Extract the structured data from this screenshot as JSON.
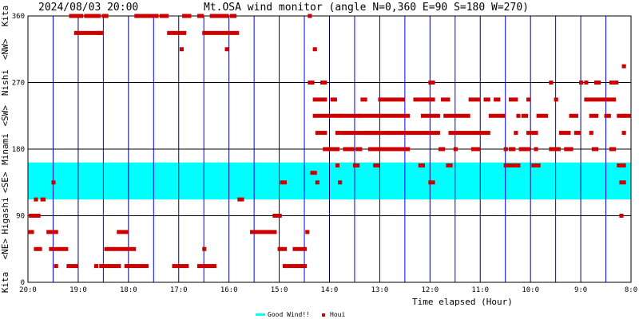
{
  "header": {
    "timestamp": "2024/08/03 20:00",
    "title": "Mt.OSA wind monitor (angle N=0,360 E=90 S=180 W=270)"
  },
  "yaxis": {
    "tick_labels": [
      "0",
      "90",
      "180",
      "270",
      "360"
    ],
    "direction_labels": [
      "Kita",
      "<NE>",
      "Higashi",
      "<SE>",
      "Minami",
      "<SW>",
      "Nishi",
      "<NW>",
      "Kita"
    ]
  },
  "xaxis": {
    "label": "Time elapsed (Hour)",
    "tick_labels": [
      "20:0",
      "19:0",
      "18:0",
      "17:0",
      "16:0",
      "15:0",
      "14:0",
      "13:0",
      "12:0",
      "11:0",
      "10:0",
      "9:0",
      "8:0"
    ]
  },
  "legend": {
    "good_wind": "Good Wind!!",
    "houi": "Houi"
  },
  "colors": {
    "good_wind": "#00ffff",
    "houi": "#cc0000",
    "grid_major": "#000080",
    "grid_minor": "#0000ff"
  },
  "chart_data": {
    "type": "scatter",
    "title": "Mt.OSA wind monitor (angle N=0,360 E=90 S=180 W=270)",
    "xlabel": "Time elapsed (Hour)",
    "ylabel": "",
    "xlim": [
      0,
      12
    ],
    "ylim": [
      0,
      360
    ],
    "x_direction": "hours elapsed from 20:00 backward to 08:00",
    "grid": true,
    "legend_position": "bottom-center",
    "good_wind_band": {
      "name": "Good Wind!!",
      "from": 112,
      "to": 162
    },
    "series": [
      {
        "name": "Houi",
        "runs": [
          [
            0.03,
            0.12,
            68
          ],
          [
            0.05,
            0.25,
            90
          ],
          [
            0.15,
            0.2,
            112
          ],
          [
            0.15,
            0.28,
            45
          ],
          [
            0.28,
            0.35,
            112
          ],
          [
            0.4,
            0.6,
            68
          ],
          [
            0.45,
            0.8,
            45
          ],
          [
            0.5,
            0.55,
            135
          ],
          [
            0.55,
            0.6,
            22
          ],
          [
            0.8,
            1.0,
            22
          ],
          [
            0.85,
            1.1,
            360
          ],
          [
            0.95,
            1.5,
            337
          ],
          [
            1.15,
            1.45,
            360
          ],
          [
            1.35,
            1.4,
            22
          ],
          [
            1.4,
            1.45,
            337
          ],
          [
            1.5,
            1.6,
            360
          ],
          [
            1.45,
            1.85,
            22
          ],
          [
            1.55,
            2.15,
            45
          ],
          [
            1.8,
            2.0,
            68
          ],
          [
            1.95,
            2.4,
            22
          ],
          [
            2.15,
            2.6,
            360
          ],
          [
            2.65,
            2.8,
            360
          ],
          [
            2.8,
            3.15,
            337
          ],
          [
            2.9,
            3.2,
            22
          ],
          [
            3.1,
            3.25,
            360
          ],
          [
            3.05,
            3.1,
            315
          ],
          [
            3.4,
            3.5,
            360
          ],
          [
            3.4,
            3.75,
            22
          ],
          [
            3.5,
            3.55,
            45
          ],
          [
            3.5,
            4.2,
            337
          ],
          [
            3.65,
            4.0,
            360
          ],
          [
            3.95,
            4.0,
            315
          ],
          [
            4.05,
            4.15,
            360
          ],
          [
            4.2,
            4.3,
            112
          ],
          [
            4.45,
            4.95,
            68
          ],
          [
            4.9,
            5.05,
            90
          ],
          [
            5.05,
            5.15,
            135
          ],
          [
            5.0,
            5.15,
            45
          ],
          [
            5.1,
            5.45,
            22
          ],
          [
            5.3,
            5.55,
            45
          ],
          [
            5.45,
            5.55,
            22
          ],
          [
            5.55,
            5.6,
            68
          ],
          [
            5.6,
            5.65,
            360
          ],
          [
            5.6,
            5.7,
            270
          ],
          [
            5.7,
            5.75,
            315
          ],
          [
            5.65,
            5.75,
            148
          ],
          [
            5.75,
            5.8,
            135
          ],
          [
            5.7,
            5.95,
            247
          ],
          [
            5.7,
            6.2,
            225
          ],
          [
            5.75,
            5.95,
            202
          ],
          [
            5.9,
            6.2,
            180
          ],
          [
            5.85,
            5.95,
            270
          ],
          [
            6.05,
            6.15,
            247
          ],
          [
            6.15,
            6.2,
            158
          ],
          [
            6.2,
            6.25,
            135
          ],
          [
            6.15,
            7.0,
            202
          ],
          [
            6.2,
            6.6,
            225
          ],
          [
            6.3,
            6.5,
            180
          ],
          [
            6.5,
            6.6,
            158
          ],
          [
            6.55,
            6.65,
            180
          ],
          [
            6.6,
            7.6,
            225
          ],
          [
            6.65,
            6.75,
            247
          ],
          [
            6.75,
            7.2,
            202
          ],
          [
            6.8,
            7.5,
            180
          ],
          [
            6.9,
            7.0,
            158
          ],
          [
            7.0,
            7.5,
            247
          ],
          [
            7.2,
            8.2,
            202
          ],
          [
            7.5,
            7.6,
            180
          ],
          [
            7.7,
            8.1,
            247
          ],
          [
            7.85,
            8.2,
            225
          ],
          [
            7.8,
            7.9,
            158
          ],
          [
            8.2,
            8.3,
            180
          ],
          [
            8.0,
            8.1,
            135
          ],
          [
            8.0,
            8.1,
            270
          ],
          [
            8.25,
            8.4,
            247
          ],
          [
            8.3,
            8.8,
            225
          ],
          [
            8.35,
            8.45,
            158
          ],
          [
            8.5,
            8.55,
            180
          ],
          [
            8.4,
            9.2,
            202
          ],
          [
            8.8,
            9.0,
            247
          ],
          [
            8.85,
            9.0,
            180
          ],
          [
            9.1,
            9.2,
            247
          ],
          [
            9.2,
            9.5,
            225
          ],
          [
            9.3,
            9.4,
            247
          ],
          [
            9.5,
            9.55,
            180
          ],
          [
            9.5,
            9.6,
            158
          ],
          [
            9.6,
            9.7,
            158
          ],
          [
            9.6,
            9.7,
            180
          ],
          [
            9.6,
            9.75,
            247
          ],
          [
            9.7,
            9.75,
            202
          ],
          [
            9.75,
            9.8,
            225
          ],
          [
            9.7,
            9.8,
            158
          ],
          [
            9.8,
            10.0,
            180
          ],
          [
            9.95,
            10.15,
            202
          ],
          [
            9.85,
            9.95,
            225
          ],
          [
            9.95,
            10.0,
            247
          ],
          [
            10.05,
            10.2,
            158
          ],
          [
            10.1,
            10.15,
            180
          ],
          [
            10.15,
            10.35,
            225
          ],
          [
            10.4,
            10.6,
            180
          ],
          [
            10.4,
            10.45,
            270
          ],
          [
            10.5,
            10.55,
            247
          ],
          [
            10.6,
            10.8,
            202
          ],
          [
            10.7,
            10.85,
            180
          ],
          [
            10.8,
            10.95,
            225
          ],
          [
            10.9,
            11.0,
            202
          ],
          [
            11.0,
            11.05,
            270
          ],
          [
            11.1,
            11.15,
            270
          ],
          [
            11.2,
            11.25,
            202
          ],
          [
            11.25,
            11.35,
            180
          ],
          [
            11.1,
            11.7,
            247
          ],
          [
            11.2,
            11.35,
            225
          ],
          [
            11.3,
            11.4,
            270
          ],
          [
            11.6,
            11.75,
            270
          ],
          [
            11.5,
            11.6,
            225
          ],
          [
            11.75,
            11.85,
            225
          ],
          [
            11.85,
            11.9,
            225
          ],
          [
            11.85,
            11.9,
            202
          ],
          [
            11.85,
            11.9,
            292
          ],
          [
            11.9,
            12.0,
            225
          ],
          [
            11.75,
            11.9,
            158
          ],
          [
            11.8,
            11.85,
            90
          ],
          [
            11.8,
            11.9,
            135
          ],
          [
            11.6,
            11.7,
            180
          ]
        ]
      }
    ]
  }
}
